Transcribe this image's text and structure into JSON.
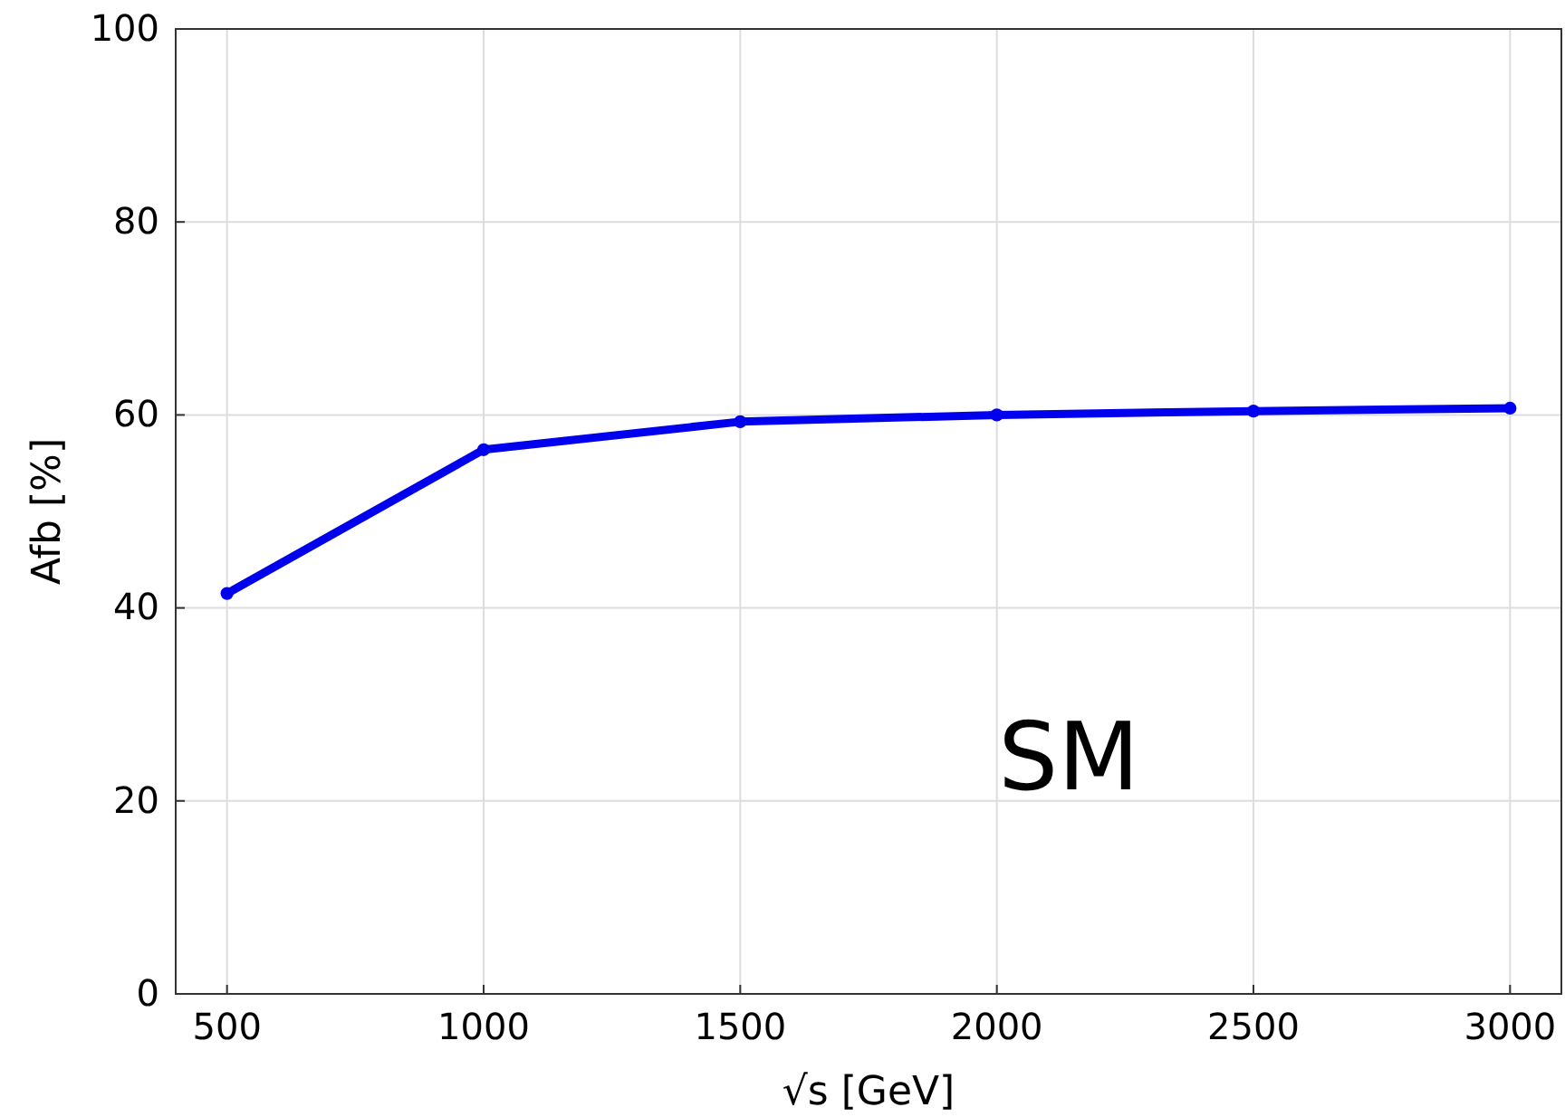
{
  "chart_data": {
    "type": "line",
    "xlabel": "√s [GeV]",
    "ylabel": "Afb [%]",
    "annotations": [
      "SM"
    ],
    "x": [
      500,
      1000,
      1500,
      2000,
      2500,
      3000
    ],
    "series": [
      {
        "color": "#0000ee",
        "values": [
          41.5,
          56.4,
          59.3,
          60.0,
          60.4,
          60.7
        ]
      }
    ],
    "xlim": [
      400,
      3100
    ],
    "xticks": [
      500,
      1000,
      1500,
      2000,
      2500,
      3000
    ],
    "ylim": [
      0,
      100
    ],
    "yticks": [
      0,
      20,
      40,
      60,
      80,
      100
    ],
    "grid": true,
    "marker": "circle",
    "line_style": "solid"
  }
}
